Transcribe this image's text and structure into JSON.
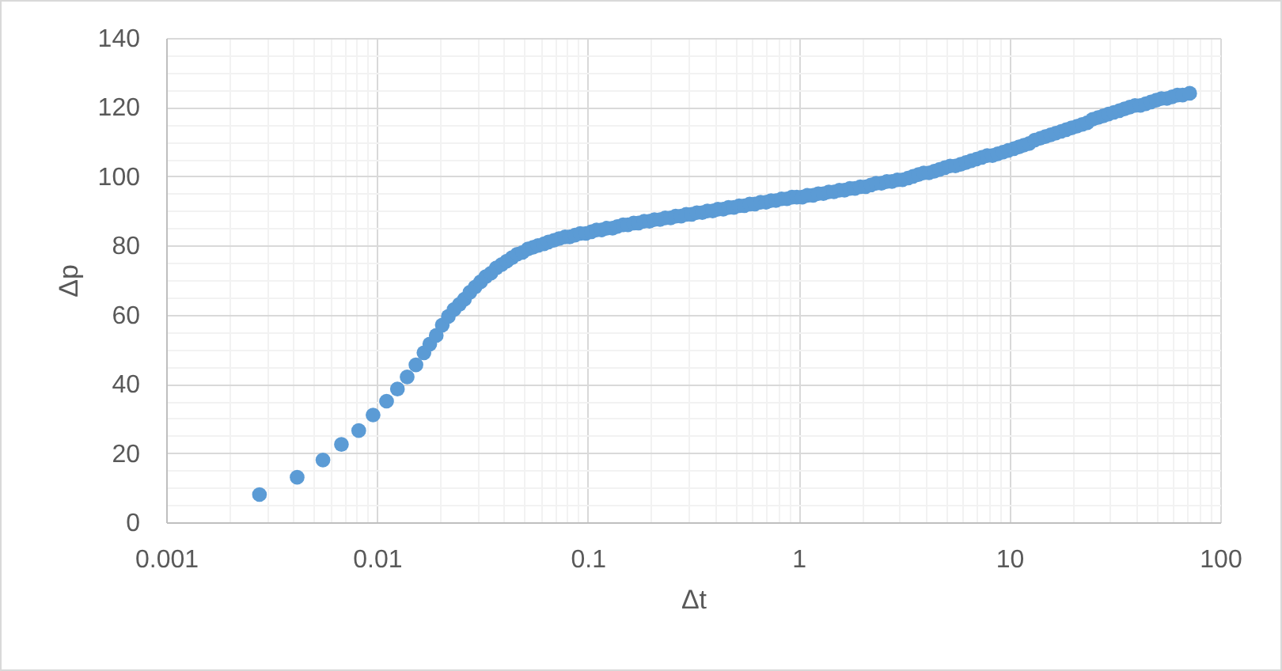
{
  "chart_data": {
    "type": "scatter",
    "xlabel": "Δt",
    "ylabel": "Δp",
    "log": "x",
    "grid": true,
    "marker": "circle",
    "xlim": [
      0.001,
      100
    ],
    "ylim": [
      0,
      140
    ],
    "xticks": [
      0.001,
      {
        "value": 0.002,
        "label": null
      },
      {
        "value": 0.003,
        "label": null
      },
      {
        "value": 0.004,
        "label": null
      },
      {
        "value": 0.005,
        "label": null
      },
      {
        "value": 0.006,
        "label": null
      },
      {
        "value": 0.007,
        "label": null
      },
      {
        "value": 0.008,
        "label": null
      },
      {
        "value": 0.009,
        "label": null
      },
      0.01,
      {
        "value": 0.02,
        "label": null
      },
      {
        "value": 0.03,
        "label": null
      },
      {
        "value": 0.04,
        "label": null
      },
      {
        "value": 0.05,
        "label": null
      },
      {
        "value": 0.06,
        "label": null
      },
      {
        "value": 0.07,
        "label": null
      },
      {
        "value": 0.08,
        "label": null
      },
      {
        "value": 0.09,
        "label": null
      },
      0.1,
      {
        "value": 0.2,
        "label": null
      },
      {
        "value": 0.3,
        "label": null
      },
      {
        "value": 0.4,
        "label": null
      },
      {
        "value": 0.5,
        "label": null
      },
      {
        "value": 0.6,
        "label": null
      },
      {
        "value": 0.7,
        "label": null
      },
      {
        "value": 0.8,
        "label": null
      },
      {
        "value": 0.9,
        "label": null
      },
      1,
      {
        "value": 2,
        "label": null
      },
      {
        "value": 3,
        "label": null
      },
      {
        "value": 4,
        "label": null
      },
      {
        "value": 5,
        "label": null
      },
      {
        "value": 6,
        "label": null
      },
      {
        "value": 7,
        "label": null
      },
      {
        "value": 8,
        "label": null
      },
      {
        "value": 9,
        "label": null
      },
      10,
      {
        "value": 20,
        "label": null
      },
      {
        "value": 30,
        "label": null
      },
      {
        "value": 40,
        "label": null
      },
      {
        "value": 50,
        "label": null
      },
      {
        "value": 60,
        "label": null
      },
      {
        "value": 70,
        "label": null
      },
      {
        "value": 80,
        "label": null
      },
      {
        "value": 90,
        "label": null
      },
      100
    ],
    "yticks": [
      0,
      {
        "value": 5,
        "label": null
      },
      {
        "value": 10,
        "label": null
      },
      {
        "value": 15,
        "label": null
      },
      20,
      {
        "value": 25,
        "label": null
      },
      {
        "value": 30,
        "label": null
      },
      {
        "value": 35,
        "label": null
      },
      40,
      {
        "value": 45,
        "label": null
      },
      {
        "value": 50,
        "label": null
      },
      {
        "value": 55,
        "label": null
      },
      60,
      {
        "value": 65,
        "label": null
      },
      {
        "value": 70,
        "label": null
      },
      {
        "value": 75,
        "label": null
      },
      80,
      {
        "value": 85,
        "label": null
      },
      {
        "value": 90,
        "label": null
      },
      {
        "value": 95,
        "label": null
      },
      100,
      {
        "value": 105,
        "label": null
      },
      {
        "value": 110,
        "label": null
      },
      {
        "value": 115,
        "label": null
      },
      120,
      {
        "value": 125,
        "label": null
      },
      {
        "value": 130,
        "label": null
      },
      {
        "value": 135,
        "label": null
      },
      140
    ],
    "x": [
      0.00277,
      0.00418,
      0.00554,
      0.00678,
      0.00819,
      0.00958,
      0.0111,
      0.0125,
      0.0139,
      0.0153,
      0.0167,
      0.0178,
      0.0191,
      0.0204,
      0.0218,
      0.0232,
      0.0246,
      0.026,
      0.0276,
      0.0292,
      0.031,
      0.0328,
      0.0347,
      0.0368,
      0.039,
      0.0413,
      0.0437,
      0.0463,
      0.049,
      0.052,
      0.055,
      0.058,
      0.062,
      0.065,
      0.069,
      0.073,
      0.078,
      0.082,
      0.087,
      0.092,
      0.098,
      0.104,
      0.11,
      0.116,
      0.123,
      0.131,
      0.138,
      0.147,
      0.155,
      0.165,
      0.174,
      0.185,
      0.196,
      0.207,
      0.22,
      0.233,
      0.247,
      0.261,
      0.277,
      0.293,
      0.311,
      0.329,
      0.349,
      0.369,
      0.391,
      0.414,
      0.439,
      0.465,
      0.493,
      0.522,
      0.553,
      0.586,
      0.62,
      0.66,
      0.7,
      0.74,
      0.78,
      0.83,
      0.88,
      0.93,
      0.98,
      1.04,
      1.1,
      1.17,
      1.24,
      1.31,
      1.39,
      1.47,
      1.56,
      1.65,
      1.75,
      1.85,
      1.96,
      2.08,
      2.2,
      2.33,
      2.47,
      2.62,
      2.77,
      2.94,
      3.11,
      3.3,
      3.49,
      3.7,
      3.92,
      4.15,
      4.4,
      4.66,
      4.94,
      5.23,
      5.54,
      5.87,
      6.22,
      6.59,
      6.98,
      7.4,
      7.84,
      8.3,
      8.8,
      9.32,
      9.87,
      10.5,
      11.1,
      11.7,
      12.4,
      13.2,
      14,
      14.8,
      15.7,
      16.6,
      17.6,
      18.6,
      19.7,
      20.9,
      22.1,
      23.4,
      24.8,
      26.3,
      27.9,
      29.5,
      31.3,
      33.2,
      35.1,
      37.2,
      39.4,
      41.8,
      44.3,
      46.9,
      49.7,
      52.6,
      55.8,
      59.1,
      62.6,
      66.3,
      71.6
    ],
    "series": [
      {
        "color": "#5b9bd5",
        "values": [
          8,
          13,
          18,
          22.5,
          26.5,
          31,
          35,
          38.5,
          42,
          45.5,
          49,
          51.5,
          54,
          57,
          59.5,
          61.5,
          63,
          64.5,
          66.5,
          68,
          69.5,
          71,
          72,
          73.5,
          74.5,
          75.5,
          76.5,
          77.5,
          78,
          79,
          79.5,
          80,
          80.5,
          81,
          81.5,
          82,
          82.5,
          82.5,
          83,
          83.5,
          83.5,
          84,
          84.5,
          84.5,
          85,
          85,
          85.5,
          86,
          86,
          86.5,
          86.5,
          87,
          87,
          87.5,
          87.5,
          88,
          88,
          88.5,
          88.5,
          89,
          89,
          89.5,
          89.5,
          90,
          90,
          90.5,
          90.5,
          91,
          91,
          91.5,
          91.5,
          92,
          92,
          92.5,
          92.5,
          93,
          93,
          93.5,
          93.5,
          94,
          94,
          94,
          94.5,
          94.5,
          95,
          95,
          95.5,
          95.5,
          96,
          96,
          96.5,
          96.5,
          97,
          97,
          97.5,
          98,
          98,
          98.5,
          98.5,
          99,
          99,
          99.5,
          100,
          100.5,
          101,
          101,
          101.5,
          102,
          102.5,
          103,
          103,
          103.5,
          104,
          104.5,
          105,
          105.5,
          106,
          106,
          106.5,
          107,
          107.5,
          108,
          108.5,
          109,
          109.5,
          110.5,
          111,
          111.5,
          112,
          112.5,
          113,
          113.5,
          114,
          114.5,
          115,
          115.5,
          116.5,
          117,
          117.5,
          118,
          118.5,
          119,
          119.5,
          120,
          120.5,
          120.5,
          121,
          121.5,
          122,
          122.5,
          122.5,
          123,
          123.5,
          123.5,
          124
        ]
      }
    ]
  }
}
